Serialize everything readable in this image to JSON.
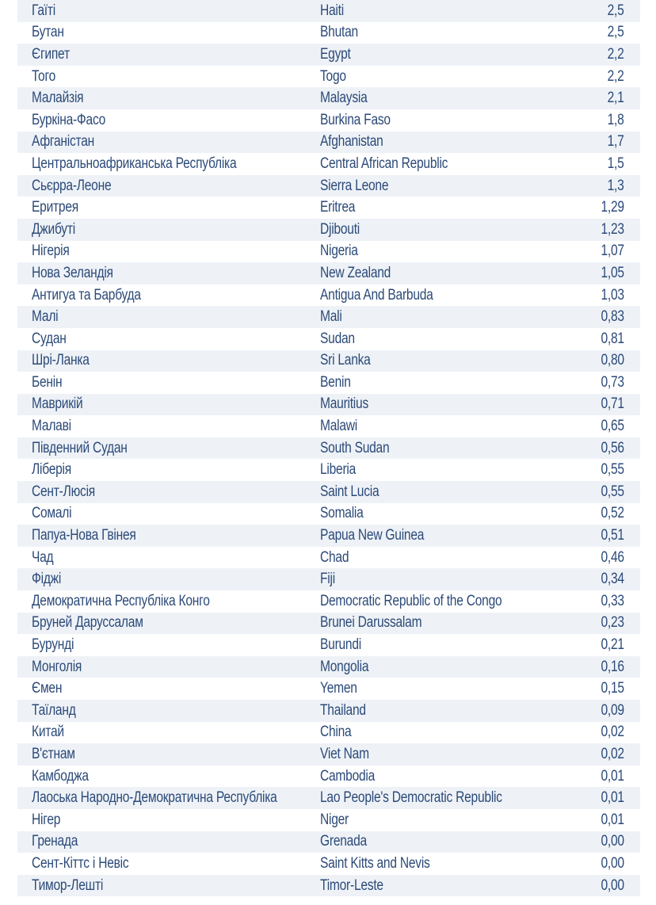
{
  "table": {
    "rows": [
      {
        "uk": "Гаїті",
        "en": "Haiti",
        "value": "2,5"
      },
      {
        "uk": "Бутан",
        "en": "Bhutan",
        "value": "2,5"
      },
      {
        "uk": "Єгипет",
        "en": "Egypt",
        "value": "2,2"
      },
      {
        "uk": "Того",
        "en": "Togo",
        "value": "2,2"
      },
      {
        "uk": "Малайзія",
        "en": "Malaysia",
        "value": "2,1"
      },
      {
        "uk": "Буркіна-Фасо",
        "en": "Burkina Faso",
        "value": "1,8"
      },
      {
        "uk": "Афганістан",
        "en": "Afghanistan",
        "value": "1,7"
      },
      {
        "uk": "Центральноафриканська Республіка",
        "en": "Central African Republic",
        "value": "1,5"
      },
      {
        "uk": "Сьєрра-Леоне",
        "en": "Sierra Leone",
        "value": "1,3"
      },
      {
        "uk": "Еритрея",
        "en": "Eritrea",
        "value": "1,29"
      },
      {
        "uk": "Джибуті",
        "en": "Djibouti",
        "value": "1,23"
      },
      {
        "uk": "Нігерія",
        "en": "Nigeria",
        "value": "1,07"
      },
      {
        "uk": "Нова Зеландія",
        "en": "New Zealand",
        "value": "1,05"
      },
      {
        "uk": "Антигуа та Барбуда",
        "en": "Antigua And Barbuda",
        "value": "1,03"
      },
      {
        "uk": "Малі",
        "en": "Mali",
        "value": "0,83"
      },
      {
        "uk": "Судан",
        "en": "Sudan",
        "value": "0,81"
      },
      {
        "uk": "Шрі-Ланка",
        "en": "Sri Lanka",
        "value": "0,80"
      },
      {
        "uk": "Бенін",
        "en": "Benin",
        "value": "0,73"
      },
      {
        "uk": "Маврикій",
        "en": "Mauritius",
        "value": "0,71"
      },
      {
        "uk": "Малаві",
        "en": "Malawi",
        "value": "0,65"
      },
      {
        "uk": "Південний Судан",
        "en": "South Sudan",
        "value": "0,56"
      },
      {
        "uk": "Ліберія",
        "en": "Liberia",
        "value": "0,55"
      },
      {
        "uk": "Сент-Люсія",
        "en": "Saint Lucia",
        "value": "0,55"
      },
      {
        "uk": "Сомалі",
        "en": "Somalia",
        "value": "0,52"
      },
      {
        "uk": "Папуа-Нова Гвінея",
        "en": "Papua New Guinea",
        "value": "0,51"
      },
      {
        "uk": "Чад",
        "en": "Chad",
        "value": "0,46"
      },
      {
        "uk": "Фіджі",
        "en": "Fiji",
        "value": "0,34"
      },
      {
        "uk": "Демократична Республіка Конго",
        "en": "Democratic Republic of the Congo",
        "value": "0,33"
      },
      {
        "uk": "Бруней Даруссалам",
        "en": "Brunei Darussalam",
        "value": "0,23"
      },
      {
        "uk": "Бурунді",
        "en": "Burundi",
        "value": "0,21"
      },
      {
        "uk": "Монголія",
        "en": "Mongolia",
        "value": "0,16"
      },
      {
        "uk": "Ємен",
        "en": "Yemen",
        "value": "0,15"
      },
      {
        "uk": "Таїланд",
        "en": "Thailand",
        "value": "0,09"
      },
      {
        "uk": "Китай",
        "en": "China",
        "value": "0,02"
      },
      {
        "uk": "В'єтнам",
        "en": "Viet Nam",
        "value": "0,02"
      },
      {
        "uk": "Камбоджа",
        "en": "Cambodia",
        "value": "0,01"
      },
      {
        "uk": "Лаоська Народно-Демократична Республіка",
        "en": "Lao People's Democratic Republic",
        "value": "0,01"
      },
      {
        "uk": "Нігер",
        "en": "Niger",
        "value": "0,01"
      },
      {
        "uk": "Гренада",
        "en": "Grenada",
        "value": "0,00"
      },
      {
        "uk": "Сент-Кіттс і Невіс",
        "en": "Saint Kitts and Nevis",
        "value": "0,00"
      },
      {
        "uk": "Тимор-Лешті",
        "en": "Timor-Leste",
        "value": "0,00"
      }
    ]
  }
}
